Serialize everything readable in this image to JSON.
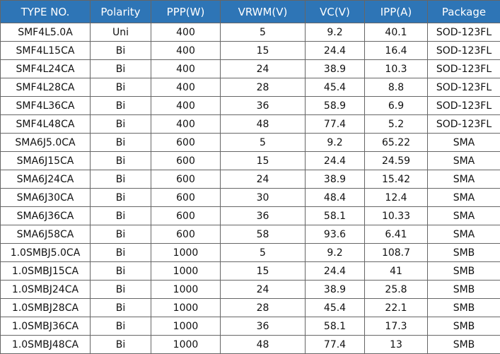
{
  "table": {
    "header": [
      "TYPE NO.",
      "Polarity",
      "PPP(W)",
      "VRWM(V)",
      "VC(V)",
      "IPP(A)",
      "Package"
    ],
    "rows": [
      [
        "SMF4L5.0A",
        "Uni",
        "400",
        "5",
        "9.2",
        "40.1",
        "SOD-123FL"
      ],
      [
        "SMF4L15CA",
        "Bi",
        "400",
        "15",
        "24.4",
        "16.4",
        "SOD-123FL"
      ],
      [
        "SMF4L24CA",
        "Bi",
        "400",
        "24",
        "38.9",
        "10.3",
        "SOD-123FL"
      ],
      [
        "SMF4L28CA",
        "Bi",
        "400",
        "28",
        "45.4",
        "8.8",
        "SOD-123FL"
      ],
      [
        "SMF4L36CA",
        "Bi",
        "400",
        "36",
        "58.9",
        "6.9",
        "SOD-123FL"
      ],
      [
        "SMF4L48CA",
        "Bi",
        "400",
        "48",
        "77.4",
        "5.2",
        "SOD-123FL"
      ],
      [
        "SMA6J5.0CA",
        "Bi",
        "600",
        "5",
        "9.2",
        "65.22",
        "SMA"
      ],
      [
        "SMA6J15CA",
        "Bi",
        "600",
        "15",
        "24.4",
        "24.59",
        "SMA"
      ],
      [
        "SMA6J24CA",
        "Bi",
        "600",
        "24",
        "38.9",
        "15.42",
        "SMA"
      ],
      [
        "SMA6J30CA",
        "Bi",
        "600",
        "30",
        "48.4",
        "12.4",
        "SMA"
      ],
      [
        "SMA6J36CA",
        "Bi",
        "600",
        "36",
        "58.1",
        "10.33",
        "SMA"
      ],
      [
        "SMA6J58CA",
        "Bi",
        "600",
        "58",
        "93.6",
        "6.41",
        "SMA"
      ],
      [
        "1.0SMBJ5.0CA",
        "Bi",
        "1000",
        "5",
        "9.2",
        "108.7",
        "SMB"
      ],
      [
        "1.0SMBJ15CA",
        "Bi",
        "1000",
        "15",
        "24.4",
        "41",
        "SMB"
      ],
      [
        "1.0SMBJ24CA",
        "Bi",
        "1000",
        "24",
        "38.9",
        "25.8",
        "SMB"
      ],
      [
        "1.0SMBJ28CA",
        "Bi",
        "1000",
        "28",
        "45.4",
        "22.1",
        "SMB"
      ],
      [
        "1.0SMBJ36CA",
        "Bi",
        "1000",
        "36",
        "58.1",
        "17.3",
        "SMB"
      ],
      [
        "1.0SMBJ48CA",
        "Bi",
        "1000",
        "48",
        "77.4",
        "13",
        "SMB"
      ]
    ]
  }
}
